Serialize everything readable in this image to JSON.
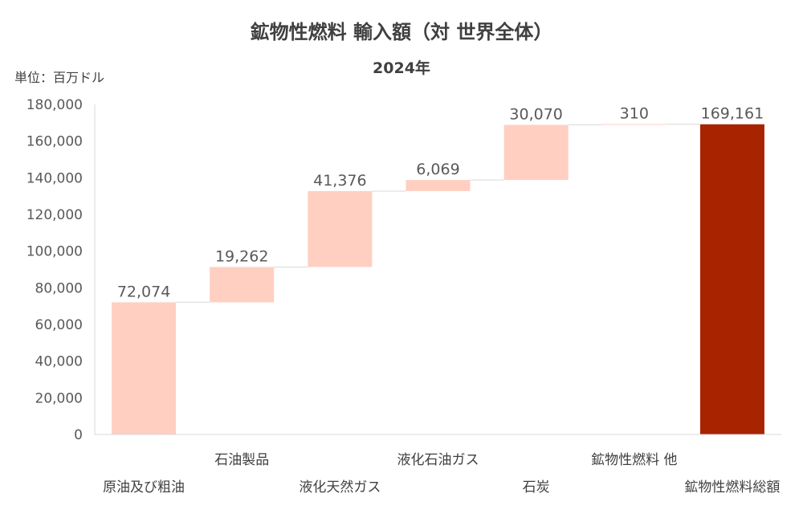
{
  "chart_data": {
    "type": "bar",
    "subtype": "waterfall",
    "title": "鉱物性燃料 輸入額（対 世界全体）",
    "subtitle": "2024年",
    "unit_label": "単位：百万ドル",
    "ylim": [
      0,
      180000
    ],
    "y_ticks": [
      "0",
      "20,000",
      "40,000",
      "60,000",
      "80,000",
      "100,000",
      "120,000",
      "140,000",
      "160,000",
      "180,000"
    ],
    "grid": false,
    "legend": "none",
    "categories": [
      "原油及び粗油",
      "石油製品",
      "液化天然ガス",
      "液化石油ガス",
      "石炭",
      "鉱物性燃料 他",
      "鉱物性燃料総額"
    ],
    "values": [
      72074,
      19262,
      41376,
      6069,
      30070,
      310,
      169161
    ],
    "value_labels": [
      "72,074",
      "19,262",
      "41,376",
      "6,069",
      "30,070",
      "310",
      "169,161"
    ],
    "is_total": [
      false,
      false,
      false,
      false,
      false,
      false,
      true
    ],
    "colors": {
      "increment": "#ffcfc2",
      "total": "#a82300",
      "connector": "#d9d9d9",
      "axis": "#d9d9d9",
      "text": "#595959"
    }
  }
}
